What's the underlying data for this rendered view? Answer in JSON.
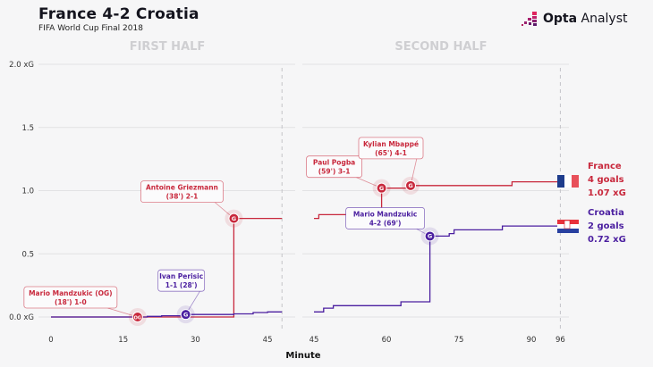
{
  "header": {
    "title": "France 4-2 Croatia",
    "subtitle": "FIFA World Cup Final 2018",
    "brand_bold": "Opta",
    "brand_rest": " Analyst"
  },
  "colors": {
    "france": "#c8283c",
    "croatia": "#4b1fa0",
    "grid": "#e2e2e4",
    "half_label": "#cfcfd2",
    "flag_blue": "#1e3c8c",
    "flag_red": "#e8505a",
    "flag_white": "#ffffff"
  },
  "chart_data": {
    "type": "line",
    "subtype": "step",
    "title": "France 4-2 Croatia",
    "subtitle": "FIFA World Cup Final 2018",
    "xlabel": "Minute",
    "ylabel": "xG",
    "ylim": [
      0,
      2.0
    ],
    "yticks": [
      {
        "value": 0.0,
        "label": "0.0 xG"
      },
      {
        "value": 0.5,
        "label": "0.5"
      },
      {
        "value": 1.0,
        "label": "1.0"
      },
      {
        "value": 1.5,
        "label": "1.5"
      },
      {
        "value": 2.0,
        "label": "2.0 xG"
      }
    ],
    "grid": true,
    "panels": [
      {
        "name": "first_half",
        "label": "FIRST HALF",
        "xlim": [
          0,
          48
        ],
        "end_minute": 48,
        "xticks": [
          0,
          15,
          30,
          45
        ]
      },
      {
        "name": "second_half",
        "label": "SECOND HALF",
        "xlim": [
          45,
          96
        ],
        "end_minute": 96,
        "xticks": [
          45,
          60,
          75,
          90,
          96
        ]
      }
    ],
    "series": [
      {
        "name": "France",
        "color": "#c8283c",
        "first_half": [
          [
            0,
            0.0
          ],
          [
            38,
            0.0
          ],
          [
            38,
            0.78
          ],
          [
            48,
            0.78
          ]
        ],
        "second_half": [
          [
            45,
            0.78
          ],
          [
            46,
            0.78
          ],
          [
            46,
            0.81
          ],
          [
            59,
            0.81
          ],
          [
            59,
            1.02
          ],
          [
            65,
            1.02
          ],
          [
            65,
            1.04
          ],
          [
            86,
            1.04
          ],
          [
            86,
            1.07
          ],
          [
            96,
            1.07
          ]
        ]
      },
      {
        "name": "Croatia",
        "color": "#4b1fa0",
        "first_half": [
          [
            0,
            0.0
          ],
          [
            20,
            0.0
          ],
          [
            20,
            0.005
          ],
          [
            23,
            0.005
          ],
          [
            23,
            0.01
          ],
          [
            28,
            0.01
          ],
          [
            28,
            0.02
          ],
          [
            38,
            0.02
          ],
          [
            38,
            0.025
          ],
          [
            42,
            0.025
          ],
          [
            42,
            0.035
          ],
          [
            45,
            0.035
          ],
          [
            45,
            0.04
          ],
          [
            48,
            0.04
          ]
        ],
        "second_half": [
          [
            45,
            0.04
          ],
          [
            47,
            0.04
          ],
          [
            47,
            0.07
          ],
          [
            49,
            0.07
          ],
          [
            49,
            0.09
          ],
          [
            63,
            0.09
          ],
          [
            63,
            0.12
          ],
          [
            69,
            0.12
          ],
          [
            69,
            0.64
          ],
          [
            73,
            0.64
          ],
          [
            73,
            0.66
          ],
          [
            74,
            0.66
          ],
          [
            74,
            0.69
          ],
          [
            84,
            0.69
          ],
          [
            84,
            0.72
          ],
          [
            96,
            0.72
          ]
        ]
      }
    ],
    "annotations": [
      {
        "team": "France",
        "panel": "first_half",
        "minute": 18,
        "xg": 0.0,
        "marker": "OG",
        "line1": "Mario Mandzukic (OG)",
        "line2": "(18') 1-0"
      },
      {
        "team": "Croatia",
        "panel": "first_half",
        "minute": 28,
        "xg": 0.02,
        "marker": "G",
        "line1": "Ivan Perisic",
        "line2": "1-1 (28')"
      },
      {
        "team": "France",
        "panel": "first_half",
        "minute": 38,
        "xg": 0.78,
        "marker": "G",
        "line1": "Antoine Griezmann",
        "line2": "(38') 2-1"
      },
      {
        "team": "France",
        "panel": "second_half",
        "minute": 59,
        "xg": 1.02,
        "marker": "G",
        "line1": "Paul Pogba",
        "line2": "(59') 3-1"
      },
      {
        "team": "France",
        "panel": "second_half",
        "minute": 65,
        "xg": 1.04,
        "marker": "G",
        "line1": "Kylian Mbappé",
        "line2": "(65') 4-1"
      },
      {
        "team": "Croatia",
        "panel": "second_half",
        "minute": 69,
        "xg": 0.64,
        "marker": "G",
        "line1": "Mario Mandzukic",
        "line2": "4-2 (69')"
      }
    ],
    "legend": [
      {
        "team": "France",
        "goals": "4 goals",
        "xg": "1.07 xG",
        "flag": "france"
      },
      {
        "team": "Croatia",
        "goals": "2 goals",
        "xg": "0.72 xG",
        "flag": "croatia"
      }
    ]
  }
}
